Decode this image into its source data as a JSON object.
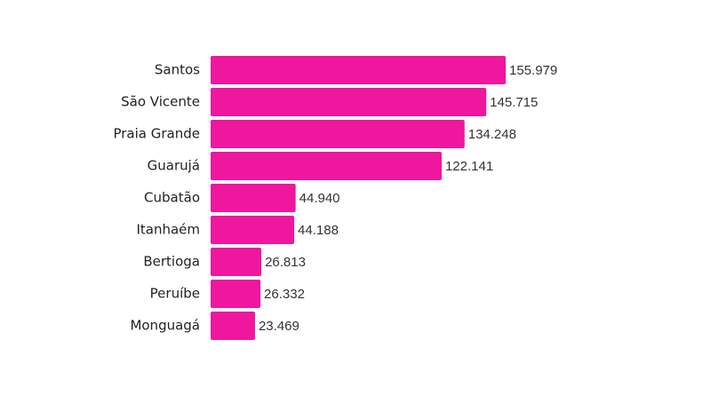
{
  "chart_data": {
    "type": "bar",
    "orientation": "horizontal",
    "categories": [
      "Santos",
      "São Vicente",
      "Praia Grande",
      "Guarujá",
      "Cubatão",
      "Itanhaém",
      "Bertioga",
      "Peruíbe",
      "Monguagá"
    ],
    "values": [
      155979,
      145715,
      134248,
      122141,
      44940,
      44188,
      26813,
      26332,
      23469
    ],
    "value_labels": [
      "155.979",
      "145.715",
      "134.248",
      "122.141",
      "44.940",
      "44.188",
      "26.813",
      "26.332",
      "23.469"
    ],
    "color": "#ee179e"
  }
}
